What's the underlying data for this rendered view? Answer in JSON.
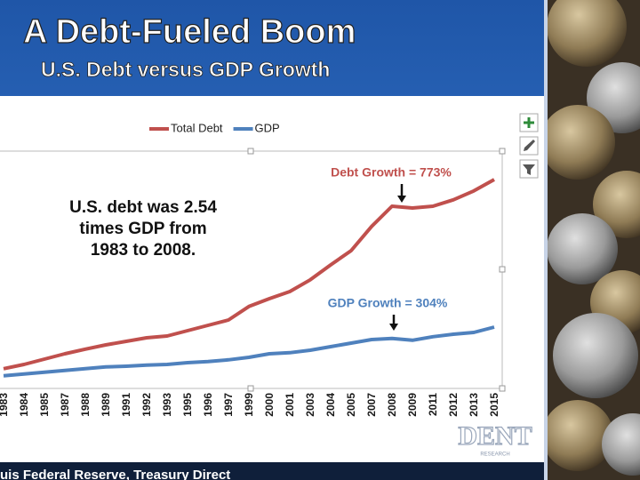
{
  "chart_data": {
    "type": "line",
    "title": "A Debt-Fueled Boom",
    "subtitle": "U.S. Debt versus GDP Growth",
    "categories": [
      "1983",
      "1984",
      "1985",
      "1987",
      "1988",
      "1989",
      "1991",
      "1992",
      "1993",
      "1995",
      "1996",
      "1997",
      "1999",
      "2000",
      "2001",
      "2003",
      "2004",
      "2005",
      "2007",
      "2008",
      "2009",
      "2011",
      "2012",
      "2013",
      "2015"
    ],
    "series": [
      {
        "name": "Total Debt",
        "color": "#c0504d",
        "values": [
          6.3,
          7.5,
          9,
          10.5,
          11.8,
          13,
          14,
          15,
          15.5,
          17,
          18.5,
          20,
          23.8,
          26,
          28,
          31.3,
          35.5,
          39.5,
          46.3,
          52,
          51.5,
          52,
          53.8,
          56.3,
          59.5
        ]
      },
      {
        "name": "GDP",
        "color": "#4f81bd",
        "values": [
          4.3,
          4.8,
          5.3,
          5.8,
          6.3,
          6.8,
          7,
          7.3,
          7.5,
          8,
          8.3,
          8.8,
          9.5,
          10.5,
          10.8,
          11.5,
          12.5,
          13.5,
          14.5,
          14.8,
          14.3,
          15.3,
          16,
          16.5,
          18
        ]
      }
    ],
    "ylim": [
      0,
      67
    ],
    "legend": "top",
    "annotations": {
      "debt_growth": "Debt Growth = 773%",
      "gdp_growth": "GDP Growth = 304%",
      "callout": [
        "U.S. debt was 2.54",
        "times GDP from",
        "1983 to 2008."
      ]
    },
    "source": "uis Federal Reserve, Treasury Direct",
    "logo": {
      "name": "DENT",
      "sub": "RESEARCH"
    }
  }
}
